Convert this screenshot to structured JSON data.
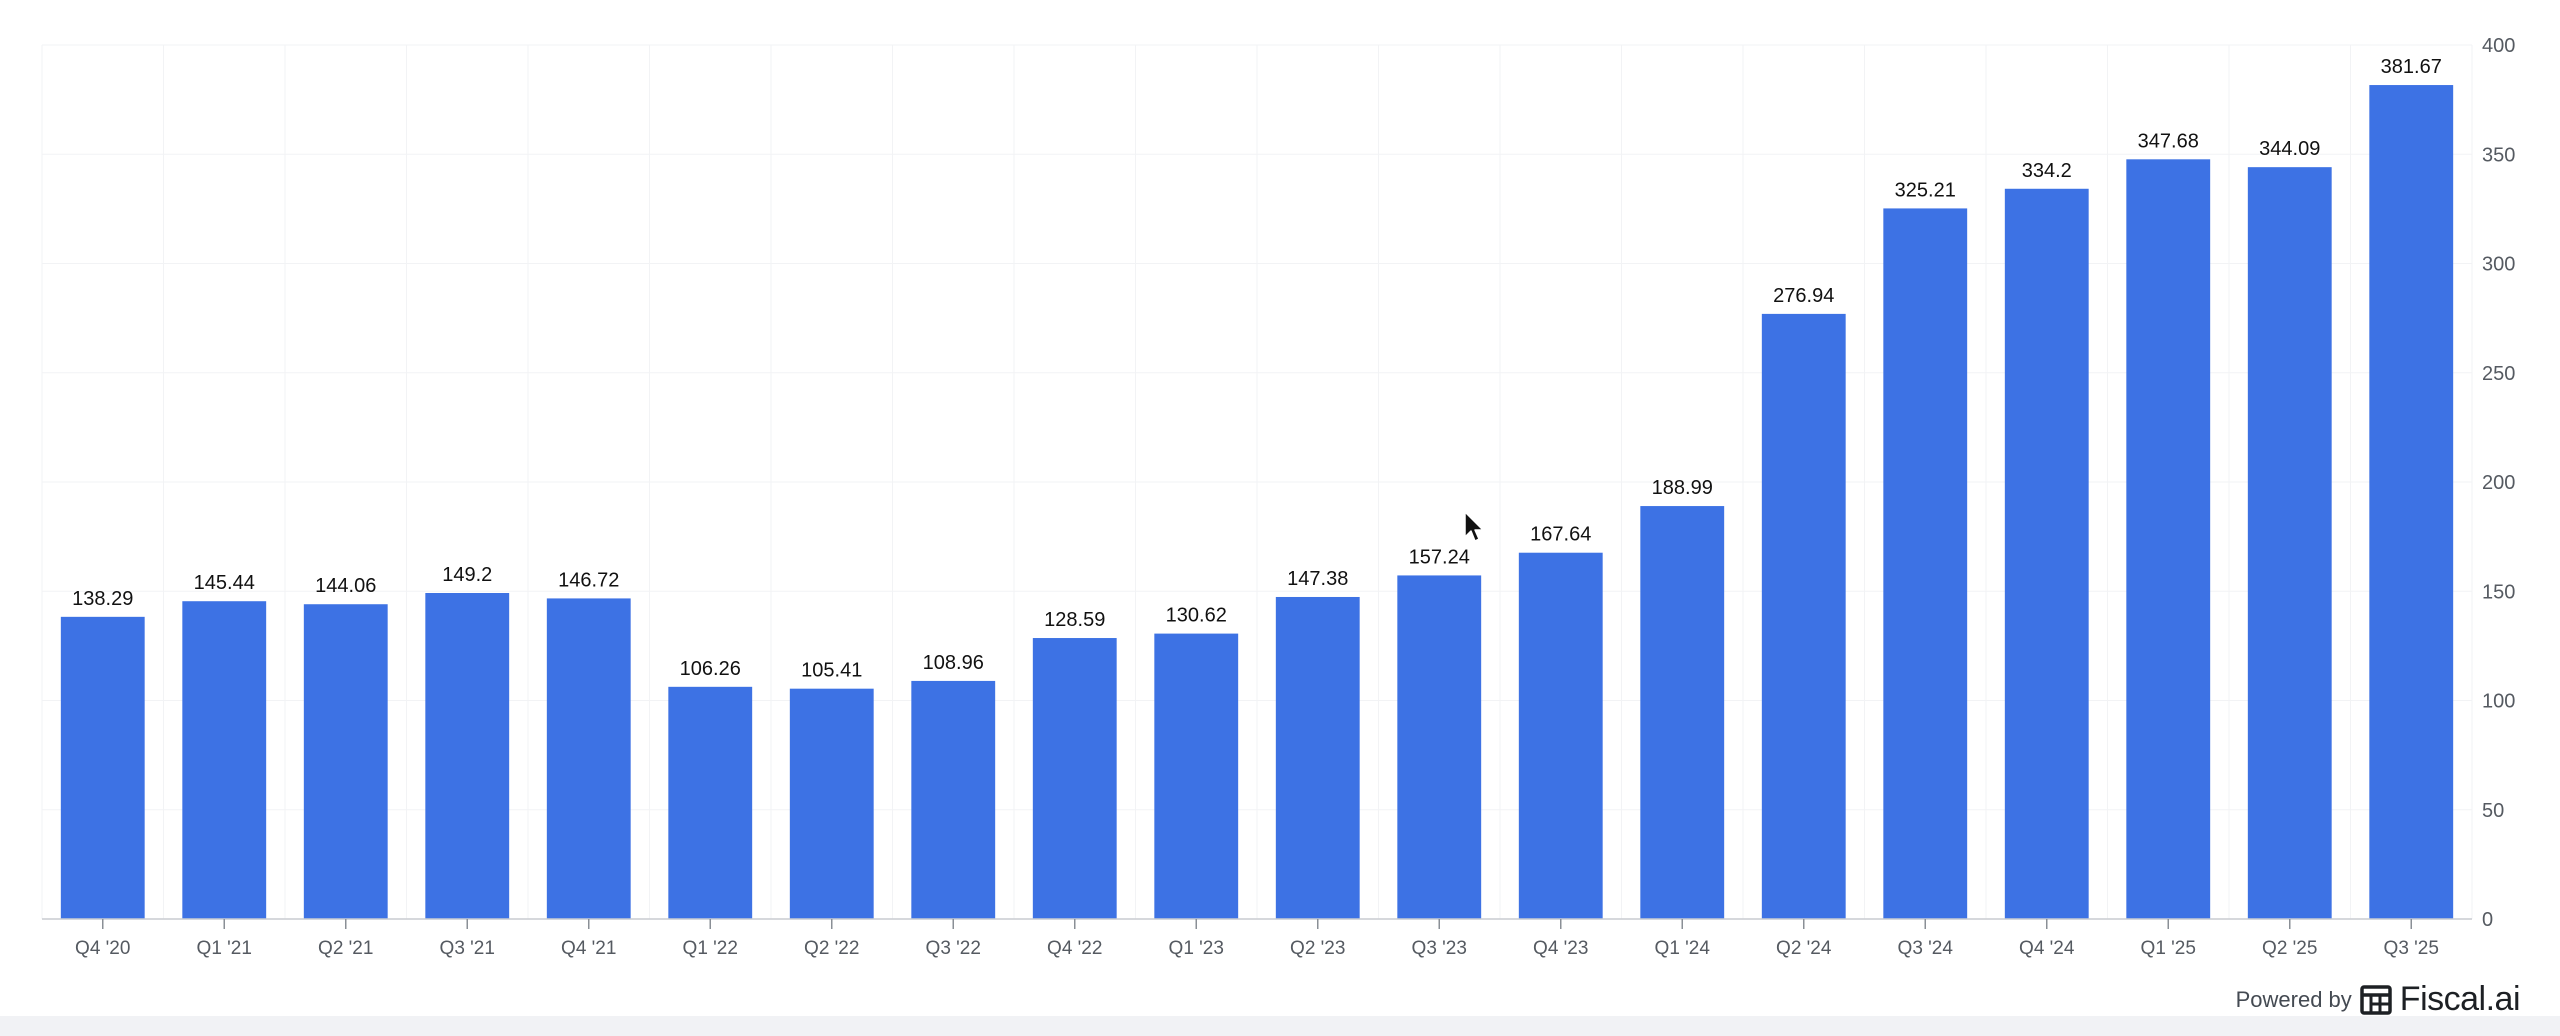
{
  "chart_data": {
    "type": "bar",
    "categories": [
      "Q4 '20",
      "Q1 '21",
      "Q2 '21",
      "Q3 '21",
      "Q4 '21",
      "Q1 '22",
      "Q2 '22",
      "Q3 '22",
      "Q4 '22",
      "Q1 '23",
      "Q2 '23",
      "Q3 '23",
      "Q4 '23",
      "Q1 '24",
      "Q2 '24",
      "Q3 '24",
      "Q4 '24",
      "Q1 '25",
      "Q2 '25",
      "Q3 '25"
    ],
    "values": [
      138.29,
      145.44,
      144.06,
      149.2,
      146.72,
      106.26,
      105.41,
      108.96,
      128.59,
      130.62,
      147.38,
      157.24,
      167.64,
      188.99,
      276.94,
      325.21,
      334.2,
      347.68,
      344.09,
      381.67
    ],
    "value_labels": [
      "138.29",
      "145.44",
      "144.06",
      "149.2",
      "146.72",
      "106.26",
      "105.41",
      "108.96",
      "128.59",
      "130.62",
      "147.38",
      "157.24",
      "167.64",
      "188.99",
      "276.94",
      "325.21",
      "334.2",
      "347.68",
      "344.09",
      "381.67"
    ],
    "title": "",
    "xlabel": "",
    "ylabel": "",
    "ylim": [
      0,
      400
    ],
    "yticks": [
      0,
      50,
      100,
      150,
      200,
      250,
      300,
      350,
      400
    ],
    "y_axis_side": "right",
    "grid": true,
    "bar_color": "#3d72e4",
    "data_labels": true
  },
  "attribution": {
    "powered_by": "Powered by",
    "brand": "Fiscal.ai",
    "icon": "fiscal-logo-icon"
  },
  "cursor": {
    "icon": "mouse-pointer-icon"
  }
}
